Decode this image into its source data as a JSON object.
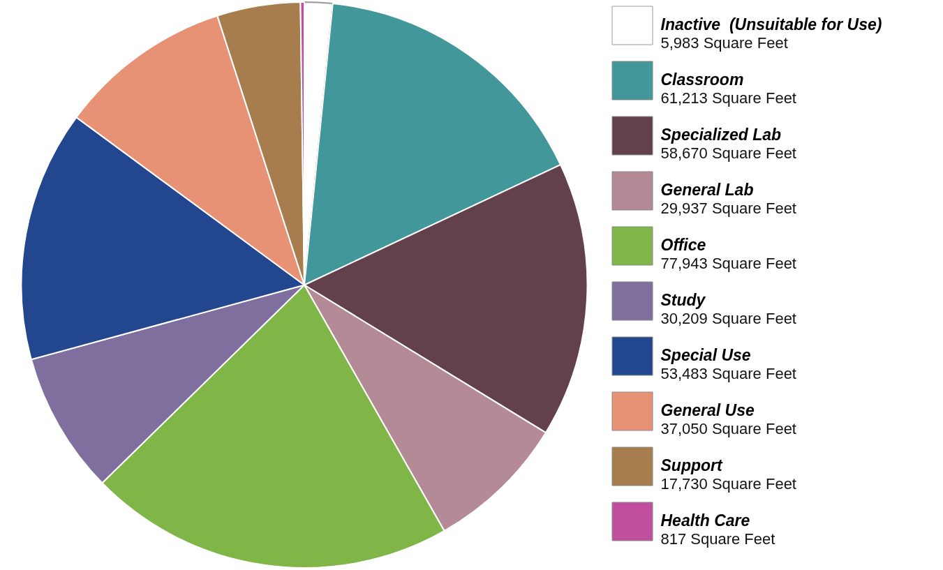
{
  "chart_data": {
    "type": "pie",
    "categories": [
      "Inactive  (Unsuitable for Use)",
      "Classroom",
      "Specialized Lab",
      "General Lab",
      "Office",
      "Study",
      "Special Use",
      "General Use",
      "Support",
      "Health Care"
    ],
    "values": [
      5983,
      61213,
      58670,
      29937,
      77943,
      30209,
      53483,
      37050,
      17730,
      817
    ],
    "value_labels": [
      "5,983 Square Feet",
      "61,213 Square Feet",
      "58,670 Square Feet",
      "29,937 Square Feet",
      "77,943 Square Feet",
      "30,209 Square Feet",
      "53,483 Square Feet",
      "37,050 Square Feet",
      "17,730 Square Feet",
      "817 Square Feet"
    ],
    "colors": [
      "#ffffff",
      "#42979a",
      "#62404c",
      "#b38a96",
      "#80b548",
      "#7e6f9f",
      "#23478f",
      "#e79274",
      "#a87d4e",
      "#c04fa0"
    ],
    "legend": "right"
  }
}
